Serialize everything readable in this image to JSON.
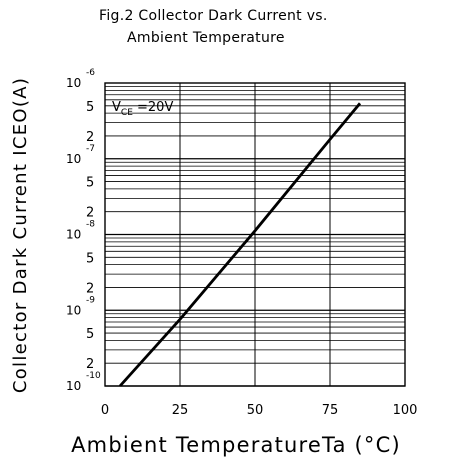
{
  "header": {
    "title_line1": "Fig.2 Collector Dark Current vs.",
    "title_line2": "Ambient Temperature"
  },
  "chart_data": {
    "type": "line",
    "title": "Fig.2 Collector Dark Current vs. Ambient Temperature",
    "xlabel": "Ambient TemperatureTa (°C)",
    "ylabel": "Collector Dark Current ICEO(A)",
    "xlim": [
      0,
      100
    ],
    "ylim": [
      1e-10,
      1e-06
    ],
    "yscale": "log",
    "grid": true,
    "x_ticks": [
      "0",
      "25",
      "50",
      "75",
      "100"
    ],
    "y_ticks": [
      {
        "value": 1e-10,
        "base": "10",
        "exp": "-10"
      },
      {
        "value": 2e-10,
        "label": "2"
      },
      {
        "value": 5e-10,
        "label": "5"
      },
      {
        "value": 1e-09,
        "base": "10",
        "exp": "-9"
      },
      {
        "value": 2e-09,
        "label": "2"
      },
      {
        "value": 5e-09,
        "label": "5"
      },
      {
        "value": 1e-08,
        "base": "10",
        "exp": "-8"
      },
      {
        "value": 2e-08,
        "label": "2"
      },
      {
        "value": 5e-08,
        "label": "5"
      },
      {
        "value": 1e-07,
        "base": "10",
        "exp": "-7"
      },
      {
        "value": 2e-07,
        "label": "2"
      },
      {
        "value": 5e-07,
        "label": "5"
      },
      {
        "value": 1e-06,
        "base": "10",
        "exp": "-6"
      }
    ],
    "annotation": {
      "prefix": "V",
      "sub": "CE",
      "text": " =20V"
    },
    "series": [
      {
        "x": [
          5,
          25,
          50,
          75,
          85
        ],
        "y": [
          1e-10,
          7.6e-10,
          1.12e-08,
          1.8e-07,
          5.4e-07
        ]
      }
    ]
  }
}
